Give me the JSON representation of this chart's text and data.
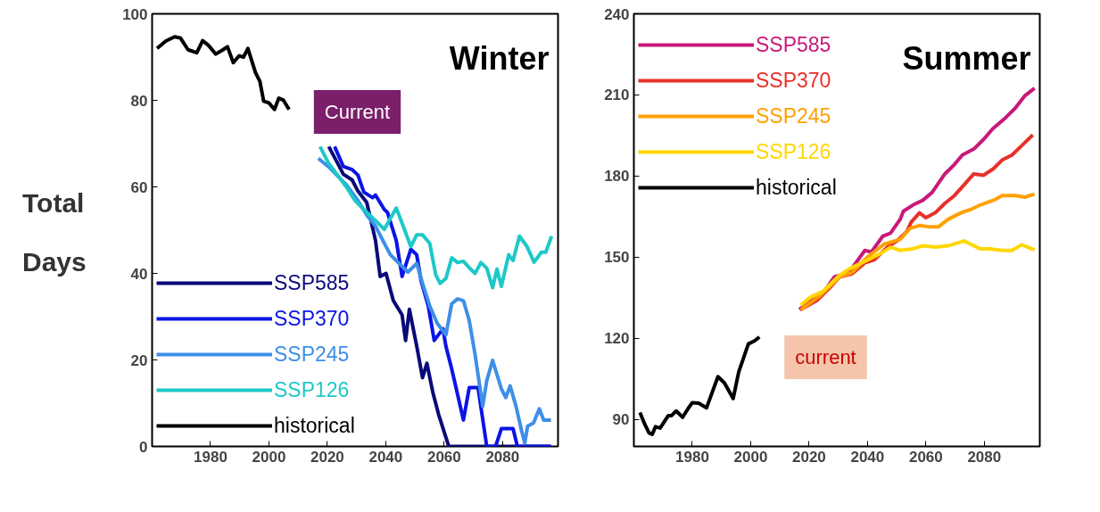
{
  "chart_data": [
    {
      "type": "line",
      "title": "Winter",
      "ylabel": "Total Days",
      "xlim": [
        1960,
        2099
      ],
      "ylim": [
        0,
        100
      ],
      "xticks": [
        1980,
        2000,
        2020,
        2040,
        2060,
        2080
      ],
      "yticks": [
        0,
        20,
        40,
        60,
        80,
        100
      ],
      "legend": "bottom left",
      "grid": false,
      "line_style": "solid",
      "annotations": [
        "Current"
      ],
      "series": [
        {
          "name": "SSP585",
          "color": "#0a0a7a",
          "x": [
            2020.5,
            2023.5,
            2025.5,
            2028.5,
            2030.5,
            2033.5,
            2036.5,
            2038.1,
            2040.1,
            2042.6,
            2045.6,
            2046.8,
            2048.1,
            2050.6,
            2052.6,
            2054.1,
            2056.1,
            2058.1,
            2061.6,
            2096.6
          ],
          "values": [
            69.3,
            65.5,
            62.9,
            61.6,
            59,
            56.4,
            47.6,
            39.3,
            40,
            33.7,
            30.4,
            24.5,
            31.7,
            23.2,
            15.9,
            19.2,
            12.6,
            7.4,
            0,
            0
          ]
        },
        {
          "name": "SSP370",
          "color": "#0a14e6",
          "x": [
            2022.5,
            2025.5,
            2028.5,
            2030.5,
            2032.5,
            2035.5,
            2036.5,
            2039.5,
            2040.6,
            2043.6,
            2045.6,
            2048.6,
            2050.6,
            2052.1,
            2054.6,
            2056.6,
            2059.6,
            2060.6,
            2062.6,
            2064.6,
            2066.6,
            2068.6,
            2071.6,
            2074.6,
            2077.6,
            2079.6,
            2083.6,
            2085.1,
            2096.6
          ],
          "values": [
            69.3,
            64.7,
            64,
            62.7,
            58.8,
            57.5,
            58.1,
            54.8,
            54.1,
            47.6,
            39.3,
            45.6,
            44.3,
            38.3,
            32.4,
            24.5,
            27.2,
            23.2,
            17.9,
            12,
            6.1,
            13.6,
            13.6,
            0,
            0,
            4.1,
            4.1,
            0,
            0
          ]
        },
        {
          "name": "SSP245",
          "color": "#3d8fe8",
          "x": [
            2016.9,
            2020.5,
            2026.5,
            2030.5,
            2033.5,
            2036.5,
            2039.5,
            2041.6,
            2044.6,
            2047.6,
            2050.6,
            2052.6,
            2055.1,
            2057.6,
            2060.6,
            2062.6,
            2064.6,
            2066.6,
            2068.6,
            2070.6,
            2073.2,
            2074.6,
            2076.6,
            2078.1,
            2079.6,
            2081.1,
            2082.6,
            2084.6,
            2086.6,
            2087.6,
            2088.6,
            2090.6,
            2092.6,
            2094.1,
            2096.6
          ],
          "values": [
            66.6,
            64.6,
            60.5,
            56.8,
            53.5,
            50.9,
            47,
            44.3,
            42.3,
            40.3,
            42.3,
            37.7,
            32.4,
            28.5,
            25.8,
            33,
            34.1,
            33.7,
            29.1,
            21.2,
            9.3,
            15.2,
            19.9,
            16.6,
            13.3,
            11.3,
            14,
            9.3,
            3.4,
            0.8,
            4.7,
            5.4,
            8.7,
            6.1,
            6.1
          ]
        },
        {
          "name": "SSP126",
          "color": "#1ec8c8",
          "x": [
            2017.5,
            2020.5,
            2026.5,
            2029.5,
            2032.5,
            2036.5,
            2039.5,
            2043.6,
            2045.6,
            2048.6,
            2050.6,
            2052.6,
            2055.1,
            2057.1,
            2058.6,
            2060.6,
            2062.6,
            2064.6,
            2066.6,
            2068.6,
            2070.6,
            2072.6,
            2074.6,
            2076.6,
            2078.1,
            2079.6,
            2082.1,
            2083.6,
            2085.8,
            2088.3,
            2090.8,
            2093.3,
            2094.8,
            2096.8
          ],
          "values": [
            69.3,
            65.4,
            60,
            56.8,
            54.8,
            52.2,
            50.2,
            55.1,
            51.6,
            46.2,
            48.9,
            48.9,
            46.9,
            39.7,
            37.7,
            38.8,
            43.6,
            42.5,
            42.8,
            41.3,
            40,
            42.5,
            41.2,
            36.7,
            41,
            37,
            44.3,
            43,
            48.6,
            46.3,
            42.6,
            44.9,
            44.9,
            48.6
          ]
        },
        {
          "name": "historical",
          "color": "#000000",
          "x": [
            1961.7,
            1964.7,
            1967.7,
            1969.7,
            1972.3,
            1975.3,
            1977.3,
            1979.3,
            1981.8,
            1984.3,
            1985.8,
            1987.8,
            1989.8,
            1991.3,
            1992.8,
            1995.4,
            1996.9,
            1998.2,
            2000,
            2001.9,
            2003.4,
            2004.9,
            2006.9
          ],
          "values": [
            92,
            93.7,
            94.7,
            94.4,
            91.7,
            91,
            93.8,
            92.7,
            90.7,
            91.7,
            92.4,
            88.7,
            90.3,
            90,
            92,
            86.4,
            84.4,
            79.8,
            79.4,
            77.9,
            80.5,
            80.1,
            77.9
          ]
        }
      ]
    },
    {
      "type": "line",
      "title": "Summer",
      "xlim": [
        1960,
        2099
      ],
      "ylim": [
        80,
        240
      ],
      "xticks": [
        1980,
        2000,
        2020,
        2040,
        2060,
        2080
      ],
      "yticks": [
        90,
        120,
        150,
        180,
        210,
        240
      ],
      "legend": "top left",
      "grid": false,
      "line_style": "solid",
      "annotations": [
        "current"
      ],
      "series": [
        {
          "name": "SSP585",
          "color": "#c8197a",
          "x": [
            2016.7,
            2020.5,
            2024.9,
            2028.7,
            2033.7,
            2039.1,
            2041.3,
            2045.2,
            2047.9,
            2051.2,
            2052.3,
            2055.6,
            2058.9,
            2062.1,
            2066.5,
            2069.8,
            2072.5,
            2076.4,
            2079.7,
            2083,
            2087.3,
            2090.6,
            2093.9,
            2097.2
          ],
          "values": [
            130.6,
            134,
            136.9,
            142.7,
            144.4,
            152.5,
            151.9,
            157.7,
            158.9,
            164,
            167,
            169.3,
            171,
            173.9,
            180.8,
            184.3,
            187.8,
            190,
            193.5,
            197.6,
            201.6,
            205.1,
            209.7,
            212.5
          ]
        },
        {
          "name": "SSP370",
          "color": "#e8302a",
          "x": [
            2017.2,
            2022.7,
            2027.1,
            2030.4,
            2034.8,
            2039.1,
            2042.4,
            2046.8,
            2050.1,
            2053.4,
            2055,
            2057.8,
            2060,
            2063.2,
            2066.5,
            2069.8,
            2073.1,
            2076.4,
            2079.7,
            2083,
            2086.2,
            2089.5,
            2092.8,
            2096.6
          ],
          "values": [
            130.6,
            134,
            138.7,
            142.7,
            143.9,
            147.9,
            149.1,
            153.7,
            156,
            159.4,
            163,
            166.4,
            164.6,
            166.4,
            169.9,
            172.8,
            176.8,
            180.8,
            180.3,
            182.6,
            186,
            187.8,
            191.2,
            195.2
          ]
        },
        {
          "name": "SSP245",
          "color": "#ffa000",
          "x": [
            2017.2,
            2023.8,
            2030.4,
            2034.8,
            2040.2,
            2045.7,
            2051.2,
            2054.5,
            2057.8,
            2061.1,
            2064.3,
            2067.6,
            2072,
            2075.3,
            2078.6,
            2083,
            2086.2,
            2090.6,
            2093.9,
            2097.2
          ],
          "values": [
            130.6,
            135.8,
            142.7,
            144.4,
            150.2,
            154.8,
            156.6,
            160.6,
            161.7,
            161.2,
            161.2,
            164,
            166.4,
            167.6,
            169.3,
            171,
            172.8,
            172.8,
            172.2,
            173.3
          ]
        },
        {
          "name": "SSP126",
          "color": "#ffd700",
          "x": [
            2017.2,
            2020.5,
            2024.9,
            2030.4,
            2033.7,
            2039.1,
            2044.6,
            2047.9,
            2051.2,
            2055.6,
            2058.9,
            2063.2,
            2067.6,
            2073.1,
            2075.3,
            2078.6,
            2081.9,
            2086.2,
            2089.5,
            2092.8,
            2097.2
          ],
          "values": [
            132.3,
            135.2,
            137.5,
            143.3,
            145.6,
            148.5,
            151.4,
            153.7,
            152.5,
            153.1,
            154.2,
            153.7,
            154.2,
            156,
            154.8,
            153.1,
            153.1,
            152.5,
            152.5,
            154.6,
            152.7
          ]
        },
        {
          "name": "historical",
          "color": "#000000",
          "x": [
            1962.1,
            1963.6,
            1965.2,
            1966.3,
            1967.4,
            1969,
            1971.8,
            1972.9,
            1974.5,
            1976.7,
            1978.4,
            1980,
            1982.2,
            1984.9,
            1988.8,
            1991,
            1994,
            1995.9,
            1999.2,
            2001.4,
            2003
          ],
          "values": [
            92.5,
            88.5,
            85,
            84.5,
            87.3,
            86.8,
            91.4,
            91.4,
            93.1,
            90.8,
            93.7,
            96.2,
            96,
            94.3,
            105.8,
            103.5,
            97.7,
            107.5,
            117.9,
            119.1,
            120.5
          ]
        }
      ]
    }
  ]
}
